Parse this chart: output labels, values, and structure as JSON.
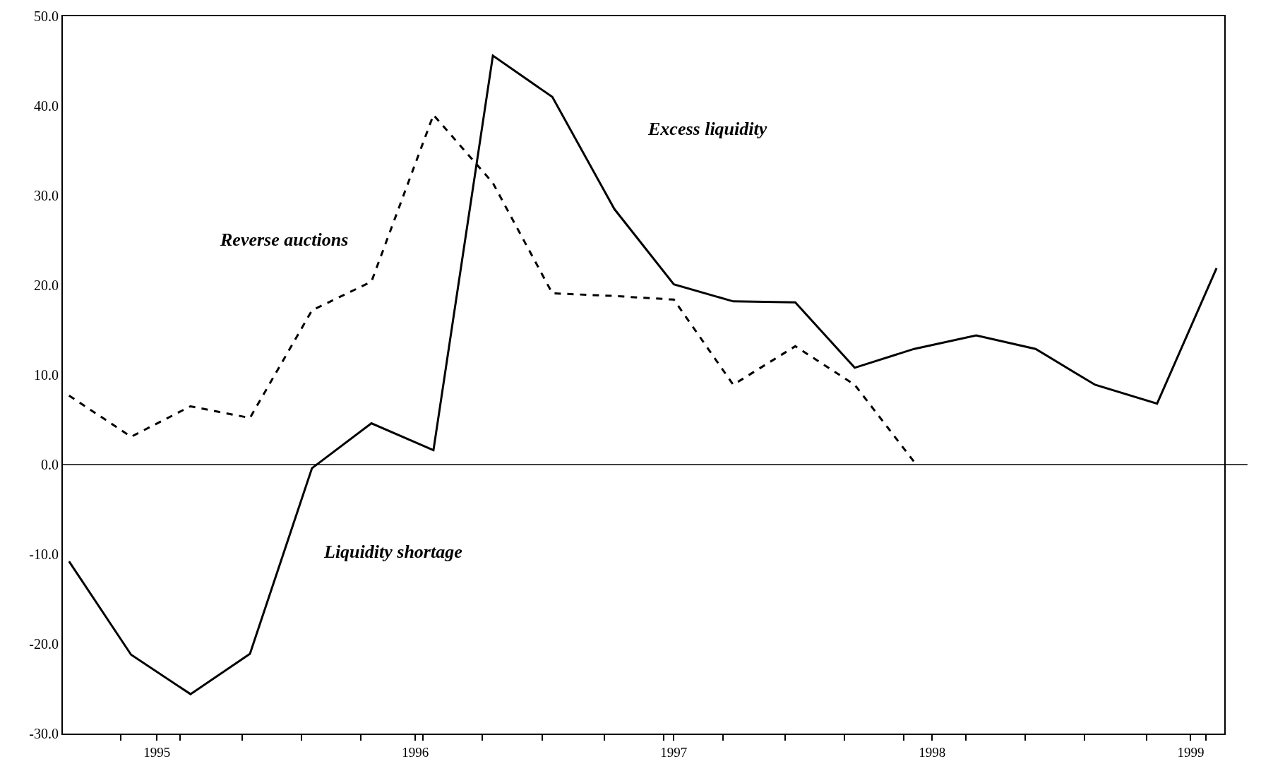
{
  "chart_data": {
    "type": "line",
    "x": [
      1994.66,
      1994.9,
      1995.13,
      1995.36,
      1995.6,
      1995.83,
      1996.07,
      1996.3,
      1996.53,
      1996.77,
      1997.0,
      1997.23,
      1997.47,
      1997.7,
      1997.93,
      1998.17,
      1998.4,
      1998.63,
      1998.87,
      1999.1
    ],
    "series": [
      {
        "color": "#000000",
        "line_style": "solid",
        "values": [
          -10.8,
          -21.2,
          -25.6,
          -21.1,
          -0.4,
          4.6,
          1.6,
          45.6,
          41.0,
          28.5,
          20.1,
          18.2,
          18.1,
          10.8,
          12.9,
          14.4,
          12.9,
          8.9,
          6.8,
          21.9
        ]
      },
      {
        "color": "#000000",
        "line_style": "dashed",
        "values": [
          7.7,
          3.1,
          6.5,
          5.2,
          17.2,
          20.4,
          39.0,
          31.4,
          19.1,
          18.8,
          18.4,
          8.9,
          13.2,
          8.9,
          0.3,
          null,
          null,
          null,
          null,
          null
        ]
      }
    ],
    "xlim": [
      1994.636,
      1999.13
    ],
    "xticks": [
      {
        "value": 1994.86,
        "label": null
      },
      1995,
      {
        "value": 1995.09,
        "label": null
      },
      {
        "value": 1995.33,
        "label": null
      },
      {
        "value": 1995.56,
        "label": null
      },
      {
        "value": 1995.79,
        "label": null
      },
      1996,
      {
        "value": 1996.03,
        "label": null
      },
      {
        "value": 1996.26,
        "label": null
      },
      {
        "value": 1996.49,
        "label": null
      },
      {
        "value": 1996.73,
        "label": null
      },
      {
        "value": 1996.96,
        "label": null
      },
      1997,
      {
        "value": 1997.19,
        "label": null
      },
      {
        "value": 1997.43,
        "label": null
      },
      {
        "value": 1997.66,
        "label": null
      },
      {
        "value": 1997.89,
        "label": null
      },
      1998,
      {
        "value": 1998.13,
        "label": null
      },
      {
        "value": 1998.36,
        "label": null
      },
      {
        "value": 1998.59,
        "label": null
      },
      {
        "value": 1998.83,
        "label": null
      },
      1999,
      {
        "value": 1999.06,
        "label": null
      }
    ],
    "ylim": [
      -30,
      50
    ],
    "yticks": [
      {
        "value": -30,
        "label": "-30.0"
      },
      {
        "value": -20,
        "label": "-20.0"
      },
      {
        "value": -10,
        "label": "-10.0"
      },
      {
        "value": 0,
        "label": "0.0"
      },
      {
        "value": 10,
        "label": "10.0"
      },
      {
        "value": 20,
        "label": "20.0"
      },
      {
        "value": 30,
        "label": "30.0"
      },
      {
        "value": 40,
        "label": "40.0"
      },
      {
        "value": 50,
        "label": "50.0"
      }
    ],
    "ref_lines": [
      {
        "axis": "y",
        "value": 0,
        "color": "#000000"
      }
    ],
    "annotations": [
      "Excess liquidity",
      "Reverse auctions",
      "Liquidity shortage"
    ],
    "marker": "none"
  }
}
